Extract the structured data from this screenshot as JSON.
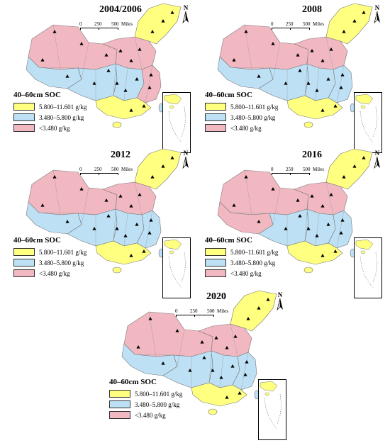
{
  "legend": {
    "title": "40–60cm SOC",
    "classes": [
      {
        "label": "5.800–11.601 g/kg",
        "color": "#ffff80"
      },
      {
        "label": "3.480–5.800 g/kg",
        "color": "#bde0f5"
      },
      {
        "label": "<3.480 g/kg",
        "color": "#f2b8c2"
      }
    ]
  },
  "scale": {
    "ticks": [
      "0",
      "250",
      "500"
    ],
    "unit": "Miles"
  },
  "north_label": "N",
  "panels": [
    {
      "year": "2004/2006",
      "regions": {
        "ne": "#ffff80",
        "north": "#f2b8c2",
        "west": "#f2b8c2",
        "tibet": "#bde0f5",
        "southwest": "#bde0f5",
        "central": "#bde0f5",
        "east": "#f2b8c2",
        "south": "#ffff80"
      }
    },
    {
      "year": "2008",
      "regions": {
        "ne": "#ffff80",
        "north": "#f2b8c2",
        "west": "#f2b8c2",
        "tibet": "#bde0f5",
        "southwest": "#bde0f5",
        "central": "#bde0f5",
        "east": "#bde0f5",
        "south": "#ffff80"
      }
    },
    {
      "year": "2012",
      "regions": {
        "ne": "#ffff80",
        "north": "#f2b8c2",
        "west": "#f2b8c2",
        "tibet": "#bde0f5",
        "southwest": "#bde0f5",
        "central": "#bde0f5",
        "east": "#bde0f5",
        "south": "#ffff80"
      }
    },
    {
      "year": "2016",
      "regions": {
        "ne": "#ffff80",
        "north": "#f2b8c2",
        "west": "#f2b8c2",
        "tibet": "#f2b8c2",
        "southwest": "#bde0f5",
        "central": "#bde0f5",
        "east": "#bde0f5",
        "south": "#ffff80"
      }
    },
    {
      "year": "2020",
      "regions": {
        "ne": "#ffff80",
        "north": "#f2b8c2",
        "west": "#f2b8c2",
        "tibet": "#bde0f5",
        "southwest": "#bde0f5",
        "central": "#bde0f5",
        "east": "#bde0f5",
        "south": "#ffff80"
      }
    }
  ]
}
